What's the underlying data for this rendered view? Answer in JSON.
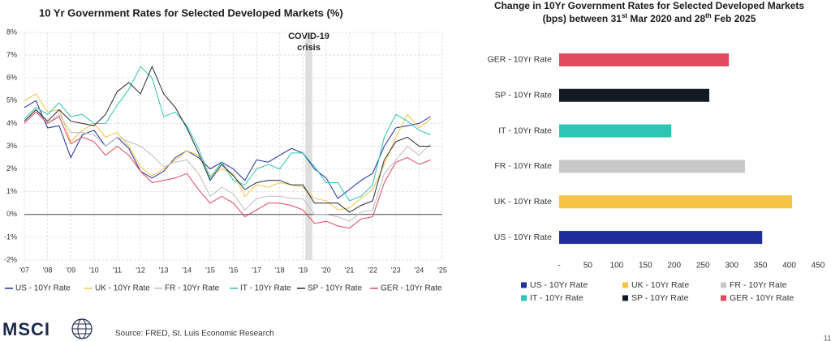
{
  "chart_data": [
    {
      "type": "line",
      "title": "10 Yr Government Rates for Selected Developed Markets (%)",
      "x": [
        2007,
        2007.5,
        2008,
        2008.5,
        2009,
        2009.5,
        2010,
        2010.5,
        2011,
        2011.5,
        2012,
        2012.5,
        2013,
        2013.5,
        2014,
        2014.5,
        2015,
        2015.5,
        2016,
        2016.5,
        2017,
        2017.5,
        2018,
        2018.5,
        2019,
        2019.5,
        2020,
        2020.5,
        2021,
        2021.5,
        2022,
        2022.5,
        2023,
        2023.5,
        2024,
        2024.5
      ],
      "series": [
        {
          "name": "US - 10Yr Rate",
          "color": "#1f2d9a",
          "values": [
            4.7,
            5.0,
            3.8,
            3.9,
            2.5,
            3.5,
            3.7,
            3.0,
            3.4,
            2.9,
            1.9,
            1.6,
            1.9,
            2.5,
            2.8,
            2.5,
            2.0,
            2.3,
            2.0,
            1.5,
            2.4,
            2.3,
            2.6,
            2.9,
            2.7,
            2.0,
            1.6,
            0.7,
            1.1,
            1.5,
            1.8,
            3.0,
            3.8,
            3.9,
            4.0,
            4.3
          ]
        },
        {
          "name": "UK - 10Yr Rate",
          "color": "#f5c542",
          "values": [
            5.0,
            5.3,
            4.5,
            4.6,
            3.2,
            3.7,
            4.0,
            3.4,
            3.6,
            3.0,
            2.1,
            1.7,
            2.0,
            2.4,
            2.8,
            2.6,
            1.7,
            2.0,
            1.8,
            0.8,
            1.3,
            1.2,
            1.4,
            1.3,
            1.2,
            0.7,
            0.6,
            0.2,
            0.3,
            0.7,
            1.1,
            2.2,
            3.4,
            4.4,
            3.8,
            4.2
          ]
        },
        {
          "name": "FR - 10Yr Rate",
          "color": "#bdbdbd",
          "values": [
            4.1,
            4.6,
            4.0,
            4.4,
            3.6,
            3.6,
            3.5,
            3.0,
            3.4,
            3.2,
            3.0,
            2.6,
            2.1,
            2.3,
            2.4,
            1.8,
            0.8,
            1.2,
            0.9,
            0.2,
            0.7,
            0.8,
            0.8,
            0.7,
            0.7,
            0.0,
            0.0,
            -0.1,
            -0.3,
            0.1,
            0.2,
            1.8,
            2.4,
            3.0,
            2.6,
            3.1
          ]
        },
        {
          "name": "IT - 10Yr Rate",
          "color": "#2ec4b6",
          "values": [
            4.2,
            4.7,
            4.4,
            4.9,
            4.3,
            4.4,
            4.0,
            4.0,
            4.8,
            5.5,
            6.5,
            6.0,
            4.3,
            4.5,
            3.9,
            2.9,
            1.6,
            2.3,
            1.5,
            1.3,
            2.0,
            2.2,
            2.0,
            2.7,
            2.7,
            2.1,
            1.4,
            1.4,
            0.6,
            0.8,
            1.3,
            3.4,
            4.4,
            4.1,
            3.7,
            3.5
          ]
        },
        {
          "name": "SP - 10Yr Rate",
          "color": "#222a33",
          "values": [
            4.1,
            4.6,
            4.1,
            4.6,
            4.1,
            4.0,
            3.9,
            4.4,
            5.4,
            5.8,
            5.3,
            6.5,
            5.3,
            4.7,
            3.8,
            2.7,
            1.5,
            2.2,
            1.7,
            1.1,
            1.4,
            1.5,
            1.5,
            1.3,
            1.3,
            0.5,
            0.5,
            0.5,
            0.1,
            0.4,
            0.6,
            2.4,
            3.2,
            3.4,
            3.0,
            3.0
          ]
        },
        {
          "name": "GER - 10Yr Rate",
          "color": "#e04a5f",
          "values": [
            4.0,
            4.5,
            4.0,
            4.3,
            3.1,
            3.4,
            3.2,
            2.6,
            3.0,
            2.6,
            1.9,
            1.4,
            1.5,
            1.6,
            1.8,
            1.1,
            0.5,
            0.8,
            0.5,
            -0.1,
            0.2,
            0.5,
            0.5,
            0.4,
            0.2,
            -0.4,
            -0.3,
            -0.5,
            -0.6,
            -0.2,
            -0.1,
            1.4,
            2.3,
            2.5,
            2.2,
            2.4
          ]
        }
      ],
      "xlim": [
        2007,
        2025
      ],
      "xticks": [
        {
          "value": 2007,
          "label": "'07"
        },
        {
          "value": 2008,
          "label": "'08"
        },
        {
          "value": 2009,
          "label": "'09"
        },
        {
          "value": 2010,
          "label": "'10"
        },
        {
          "value": 2011,
          "label": "'11"
        },
        {
          "value": 2012,
          "label": "'12"
        },
        {
          "value": 2013,
          "label": "'13"
        },
        {
          "value": 2014,
          "label": "'14"
        },
        {
          "value": 2015,
          "label": "'15"
        },
        {
          "value": 2016,
          "label": "'16"
        },
        {
          "value": 2017,
          "label": "'17"
        },
        {
          "value": 2018,
          "label": "'18"
        },
        {
          "value": 2019,
          "label": "'19"
        },
        {
          "value": 2020,
          "label": "'20"
        },
        {
          "value": 2021,
          "label": "'21"
        },
        {
          "value": 2022,
          "label": "'22"
        },
        {
          "value": 2023,
          "label": "'23"
        },
        {
          "value": 2024,
          "label": "'24"
        },
        {
          "value": 2025,
          "label": "'25"
        }
      ],
      "ylim": [
        -2,
        8
      ],
      "yticks": [
        {
          "value": -2,
          "label": "-2%"
        },
        {
          "value": -1,
          "label": "-1%"
        },
        {
          "value": 0,
          "label": "0%"
        },
        {
          "value": 1,
          "label": "1%"
        },
        {
          "value": 2,
          "label": "2%"
        },
        {
          "value": 3,
          "label": "3%"
        },
        {
          "value": 4,
          "label": "4%"
        },
        {
          "value": 5,
          "label": "5%"
        },
        {
          "value": 6,
          "label": "6%"
        },
        {
          "value": 7,
          "label": "7%"
        },
        {
          "value": 8,
          "label": "8%"
        }
      ],
      "grid": true,
      "legend": "bottom",
      "annotation": {
        "lines": [
          "COVID-19",
          "crisis"
        ],
        "x": [
          2019.1,
          2019.4
        ]
      }
    },
    {
      "type": "bar",
      "orientation": "horizontal",
      "title_lines": [
        [
          "Change in 10Yr Government Rates for Selected Developed Markets"
        ],
        [
          "(bps) between 31",
          "st",
          " Mar 2020 and 28",
          "th",
          " Feb 2025"
        ]
      ],
      "categories": [
        "US - 10Yr Rate",
        "UK - 10Yr Rate",
        "FR - 10Yr Rate",
        "IT - 10Yr Rate",
        "SP - 10Yr Rate",
        "GER - 10Yr Rate"
      ],
      "values": [
        353,
        405,
        323,
        195,
        261,
        295
      ],
      "colors": [
        "#1f2d9a",
        "#f5c542",
        "#c8c8c8",
        "#2ec4b6",
        "#131a22",
        "#e04a5f"
      ],
      "xlim": [
        0,
        450
      ],
      "xticks": [
        {
          "value": 0,
          "label": "-"
        },
        50,
        100,
        150,
        200,
        250,
        300,
        350,
        400,
        450
      ],
      "legend": "bottom"
    }
  ],
  "footer": {
    "logo": "MSCI",
    "source": "Source: FRED, St. Luis Economic Research",
    "page_number": "11"
  }
}
